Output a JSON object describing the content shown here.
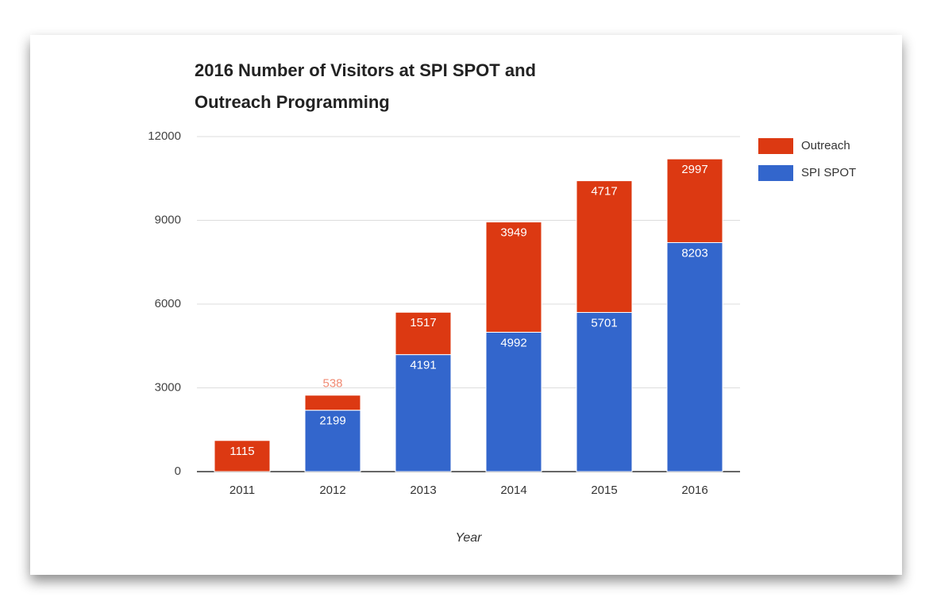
{
  "chart_data": {
    "type": "stacked_bar",
    "title": [
      "2016 Number of Visitors at SPI SPOT and",
      "Outreach Programming"
    ],
    "x_label": "Year",
    "categories": [
      "2011",
      "2012",
      "2013",
      "2014",
      "2015",
      "2016"
    ],
    "series": [
      {
        "name": "SPI SPOT",
        "color": "#3366cc",
        "values": [
          0,
          2199,
          4191,
          4992,
          5701,
          8203
        ]
      },
      {
        "name": "Outreach",
        "color": "#dc3912",
        "values": [
          1115,
          538,
          1517,
          3949,
          4717,
          2997
        ]
      }
    ],
    "ylim": [
      0,
      12000
    ],
    "yticks": [
      0,
      3000,
      6000,
      9000,
      12000
    ],
    "grid": true,
    "legend": "right"
  }
}
